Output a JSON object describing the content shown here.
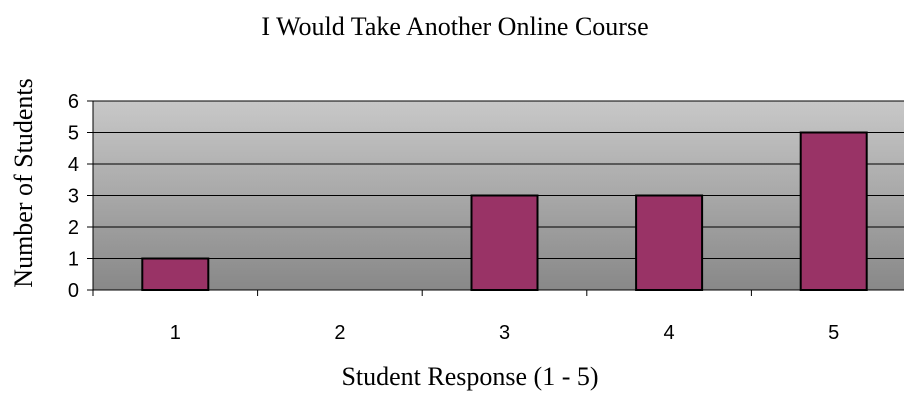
{
  "chart_data": {
    "type": "bar",
    "title": "I Would Take Another Online Course",
    "xlabel": "Student Response (1 - 5)",
    "ylabel": "Number of Students",
    "categories": [
      "1",
      "2",
      "3",
      "4",
      "5"
    ],
    "values": [
      1,
      0,
      3,
      3,
      5
    ],
    "ylim": [
      0,
      6
    ],
    "yticks": [
      "0",
      "1",
      "2",
      "3",
      "4",
      "5",
      "6"
    ],
    "grid": true,
    "legend": "none",
    "colors": {
      "bar_fill": "#993366",
      "bar_stroke": "#000000",
      "plot_bg_top": "#c8c8c8",
      "plot_bg_bottom": "#888888",
      "gridline": "#000000"
    }
  }
}
